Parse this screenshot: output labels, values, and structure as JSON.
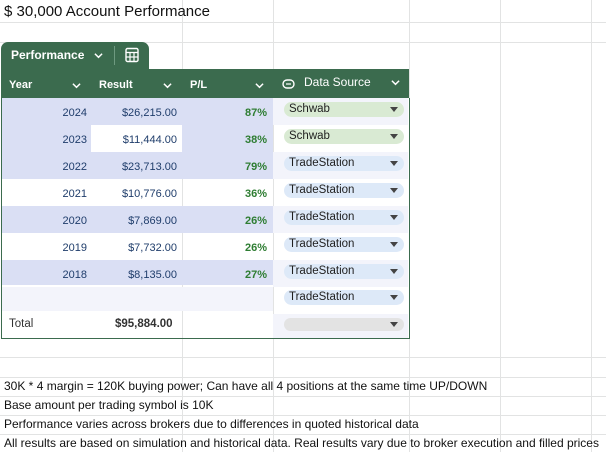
{
  "title": "$ 30,000 Account Performance",
  "table": {
    "name": "Performance",
    "headers": {
      "year": "Year",
      "result": "Result",
      "pl": "P/L",
      "source": "Data Source"
    },
    "rows": [
      {
        "year": "2024",
        "result": "$26,215.00",
        "pl": "87%",
        "source": "Schwab"
      },
      {
        "year": "2023",
        "result": "$11,444.00",
        "pl": "38%",
        "source": "Schwab"
      },
      {
        "year": "2022",
        "result": "$23,713.00",
        "pl": "79%",
        "source": "TradeStation"
      },
      {
        "year": "2021",
        "result": "$10,776.00",
        "pl": "36%",
        "source": "TradeStation"
      },
      {
        "year": "2020",
        "result": "$7,869.00",
        "pl": "26%",
        "source": "TradeStation"
      },
      {
        "year": "2019",
        "result": "$7,732.00",
        "pl": "26%",
        "source": "TradeStation"
      },
      {
        "year": "2018",
        "result": "$8,135.00",
        "pl": "27%",
        "source": "TradeStation"
      }
    ],
    "extra_source": "TradeStation",
    "total_label": "Total",
    "total_value": "$95,884.00"
  },
  "notes": [
    "30K * 4 margin = 120K buying power; Can have all 4 positions at the same time UP/DOWN",
    "Base amount per trading symbol is 10K",
    "Performance varies across brokers due to differences in quoted historical data",
    "All results are based on simulation and historical data. Real results vary due to broker execution and filled prices"
  ],
  "colors": {
    "header": "#3b6b4e",
    "row_shade": "#dadff4",
    "chip_green": "#d9ead3",
    "chip_blue": "#dde9f8",
    "pl_text": "#2e7d32"
  },
  "icons": [
    "chevron-down-icon",
    "calculator-icon",
    "dropdown-chip-icon",
    "caret-down-icon"
  ]
}
